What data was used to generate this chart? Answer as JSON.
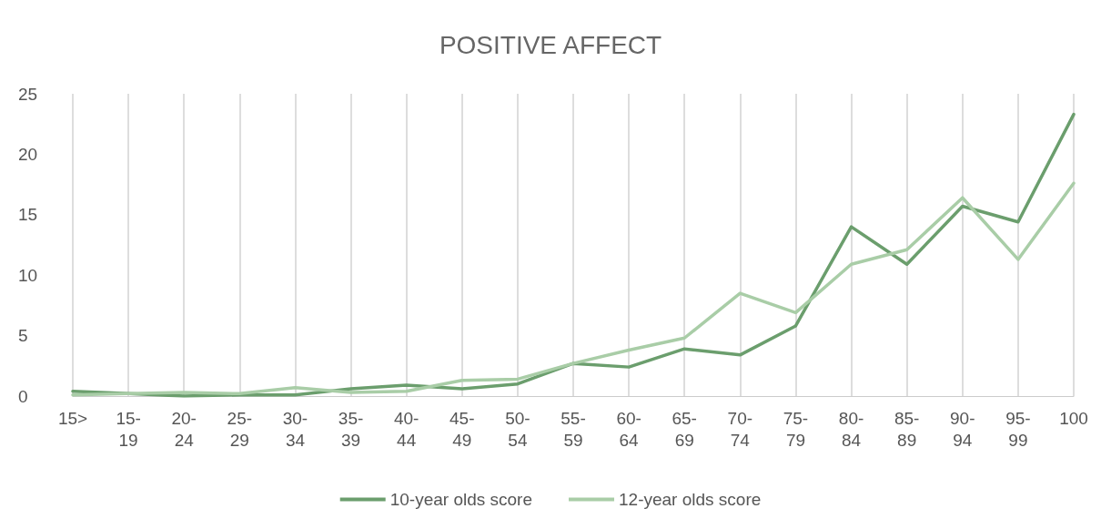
{
  "chart_data": {
    "type": "line",
    "title": "POSITIVE AFFECT",
    "categories": [
      "15>",
      "15-\n19",
      "20-\n24",
      "25-\n29",
      "30-\n34",
      "35-\n39",
      "40-\n44",
      "45-\n49",
      "50-\n54",
      "55-\n59",
      "60-\n64",
      "65-\n69",
      "70-\n74",
      "75-\n79",
      "80-\n84",
      "85-\n89",
      "90-\n94",
      "95-\n99",
      "100"
    ],
    "series": [
      {
        "name": "10-year olds score",
        "color": "#6b9e6d",
        "values": [
          0.4,
          0.2,
          0.0,
          0.1,
          0.1,
          0.6,
          0.9,
          0.6,
          1.0,
          2.7,
          2.4,
          3.9,
          3.4,
          5.8,
          14.0,
          10.9,
          15.7,
          14.4,
          23.3
        ]
      },
      {
        "name": "12-year olds score",
        "color": "#a9cda7",
        "values": [
          0.1,
          0.2,
          0.3,
          0.2,
          0.7,
          0.3,
          0.4,
          1.3,
          1.4,
          2.7,
          3.8,
          4.8,
          8.5,
          6.9,
          10.9,
          12.1,
          16.4,
          11.3,
          17.6
        ]
      }
    ],
    "ylim": [
      0,
      25
    ],
    "yticks": [
      0,
      5,
      10,
      15,
      20,
      25
    ],
    "grid": "x",
    "legend": "bottom",
    "marker": "none",
    "line_style": "solid"
  }
}
